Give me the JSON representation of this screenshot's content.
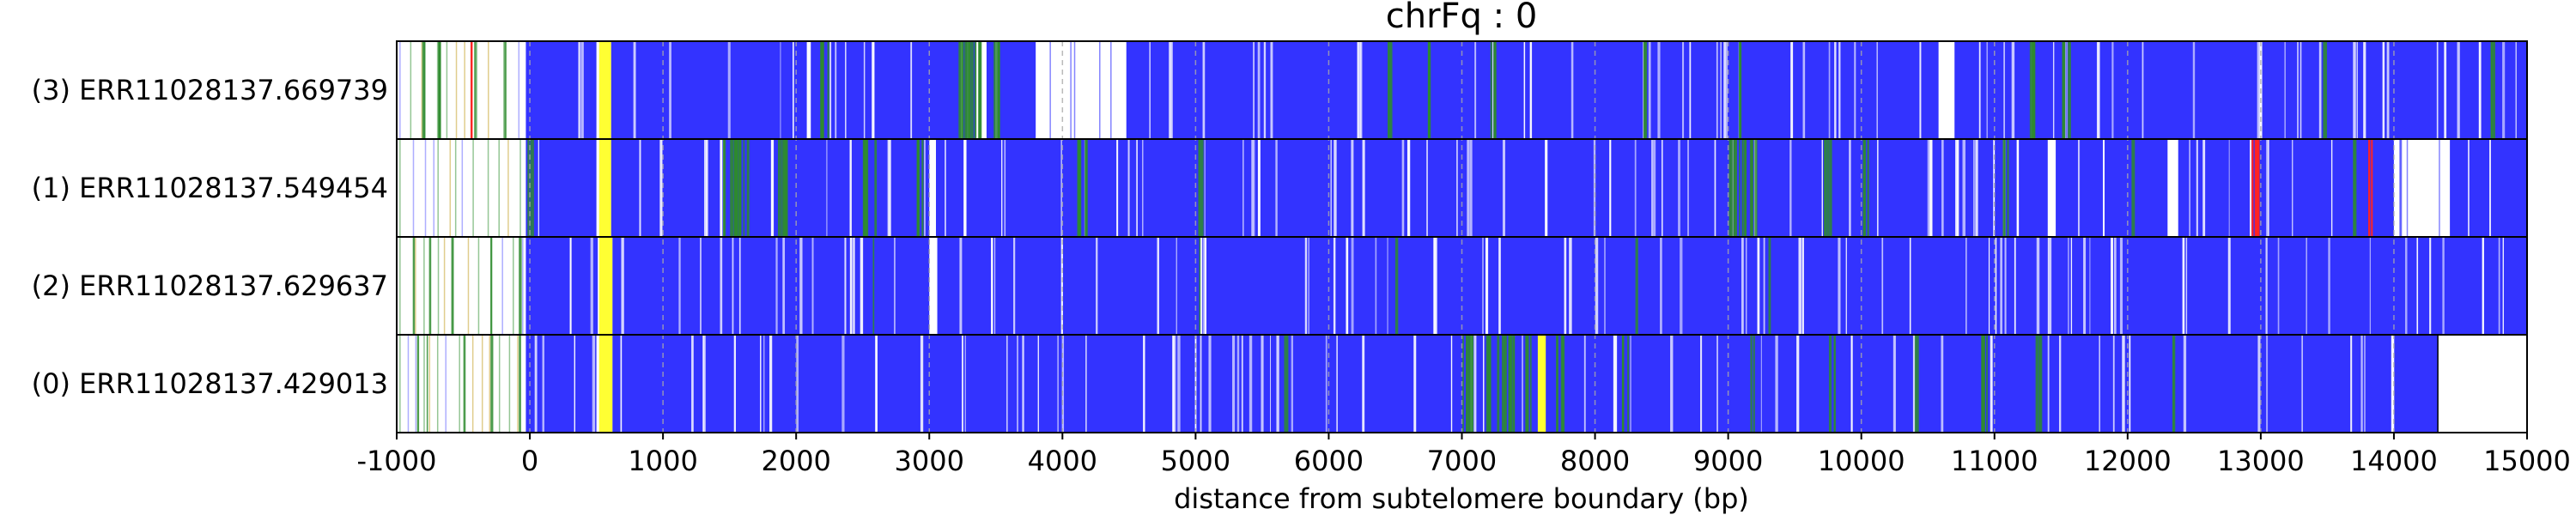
{
  "chart_data": {
    "type": "heatmap",
    "title": "chrFq : 0",
    "xlabel": "distance from subtelomere boundary (bp)",
    "ylabel": "",
    "xlim": [
      -1000,
      15000
    ],
    "x_ticks": [
      -1000,
      0,
      1000,
      2000,
      3000,
      4000,
      5000,
      6000,
      7000,
      8000,
      9000,
      10000,
      11000,
      12000,
      13000,
      14000,
      15000
    ],
    "x_tick_labels": [
      "-1000",
      "0",
      "1000",
      "2000",
      "3000",
      "4000",
      "5000",
      "6000",
      "7000",
      "8000",
      "9000",
      "10000",
      "11000",
      "12000",
      "13000",
      "14000",
      "15000"
    ],
    "grid": "vertical dashed lines at each tick",
    "legend": "none",
    "colors": {
      "methylated": "#3333ff",
      "green": "#2e8b2e",
      "highlight": "#ffff33",
      "red": "#ff2222",
      "background": "#ffffff"
    },
    "rows": [
      {
        "label": "(3) ERR11028137.669739",
        "read_start": -1000,
        "read_end": 15000,
        "blue_regions": [
          [
            -30,
            500
          ],
          [
            610,
            2080
          ],
          [
            2110,
            3350
          ],
          [
            3430,
            3800
          ],
          [
            4480,
            10580
          ],
          [
            10700,
            15000
          ]
        ],
        "white_regions": [
          [
            3800,
            4300
          ],
          [
            4350,
            4450
          ]
        ],
        "yellow_regions": [
          [
            520,
            610
          ]
        ],
        "red_regions": [
          [
            -450,
            -440
          ]
        ],
        "green_regions": [
          [
            -820,
            -780
          ],
          [
            -700,
            -660
          ],
          [
            -420,
            -400
          ],
          [
            -200,
            -190
          ],
          [
            2140,
            2240
          ],
          [
            3200,
            3380
          ],
          [
            3480,
            3560
          ],
          [
            6420,
            6470
          ],
          [
            6720,
            6770
          ],
          [
            7200,
            7250
          ],
          [
            8350,
            8380
          ],
          [
            9050,
            9090
          ],
          [
            11240,
            11300
          ],
          [
            11500,
            11560
          ],
          [
            13450,
            13480
          ],
          [
            14700,
            14750
          ]
        ]
      },
      {
        "label": "(1) ERR11028137.549454",
        "read_start": -1000,
        "read_end": 15000,
        "blue_regions": [
          [
            -30,
            500
          ],
          [
            610,
            3000
          ],
          [
            3050,
            11400
          ],
          [
            11460,
            12300
          ],
          [
            12380,
            14000
          ],
          [
            14420,
            15000
          ]
        ],
        "white_regions": [
          [
            14000,
            14420
          ]
        ],
        "yellow_regions": [
          [
            520,
            610
          ]
        ],
        "red_regions": [
          [
            12930,
            12990
          ],
          [
            13800,
            13830
          ]
        ],
        "green_regions": [
          [
            -30,
            20
          ],
          [
            1440,
            1650
          ],
          [
            1850,
            1950
          ],
          [
            2500,
            2600
          ],
          [
            2900,
            2950
          ],
          [
            4100,
            4200
          ],
          [
            5000,
            5050
          ],
          [
            9000,
            9200
          ],
          [
            9700,
            9760
          ],
          [
            10000,
            10060
          ],
          [
            11050,
            11100
          ],
          [
            12000,
            12040
          ],
          [
            13680,
            13720
          ]
        ]
      },
      {
        "label": "(2) ERR11028137.629637",
        "read_start": -1000,
        "read_end": 15000,
        "blue_regions": [
          [
            -30,
            510
          ],
          [
            620,
            3000
          ],
          [
            3060,
            15000
          ]
        ],
        "white_regions": [],
        "yellow_regions": [
          [
            520,
            620
          ]
        ],
        "red_regions": [],
        "green_regions": [
          [
            -880,
            -870
          ],
          [
            -760,
            -750
          ],
          [
            -600,
            -590
          ],
          [
            -300,
            -290
          ],
          [
            -100,
            -80
          ],
          [
            2560,
            2580
          ],
          [
            5020,
            5040
          ],
          [
            6500,
            6520
          ],
          [
            8290,
            8310
          ],
          [
            9300,
            9310
          ]
        ]
      },
      {
        "label": "(0) ERR11028137.429013",
        "read_start": -1000,
        "read_end": 14330,
        "blue_regions": [
          [
            -30,
            500
          ],
          [
            620,
            14330
          ]
        ],
        "white_regions": [],
        "yellow_regions": [
          [
            520,
            620
          ],
          [
            7570,
            7630
          ]
        ],
        "red_regions": [],
        "green_regions": [
          [
            -850,
            -840
          ],
          [
            -780,
            -760
          ],
          [
            -500,
            -490
          ],
          [
            -300,
            -290
          ],
          [
            -100,
            -80
          ],
          [
            5660,
            5700
          ],
          [
            7000,
            7100
          ],
          [
            7180,
            7400
          ],
          [
            7470,
            7530
          ],
          [
            7700,
            7760
          ],
          [
            8200,
            8250
          ],
          [
            9160,
            9200
          ],
          [
            9750,
            9800
          ],
          [
            10400,
            10440
          ],
          [
            10900,
            10960
          ],
          [
            11300,
            11350
          ],
          [
            12300,
            12340
          ]
        ]
      }
    ]
  }
}
